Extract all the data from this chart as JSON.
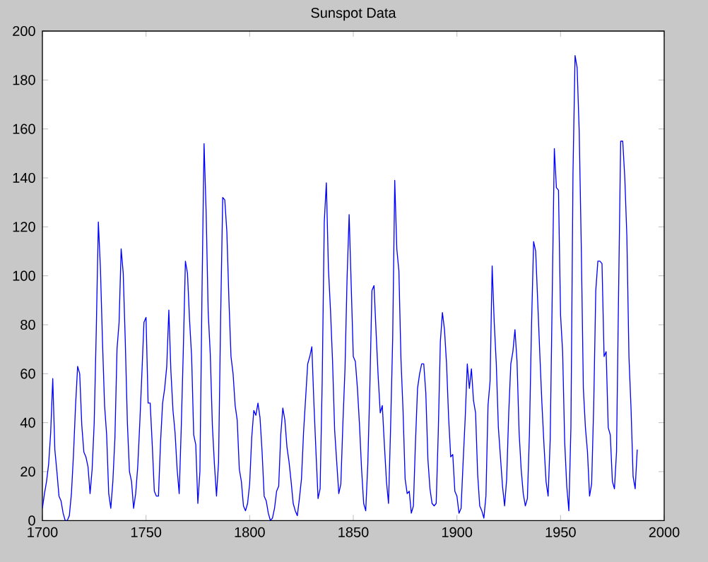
{
  "chart_data": {
    "type": "line",
    "title": "Sunspot Data",
    "xlim": [
      1700,
      2000
    ],
    "xticks": [
      1700,
      1750,
      1800,
      1850,
      1900,
      1950,
      2000
    ],
    "ylim": [
      0,
      200
    ],
    "yticks": [
      0,
      20,
      40,
      60,
      80,
      100,
      120,
      140,
      160,
      180,
      200
    ],
    "marker": "none",
    "line_style": "solid",
    "series": [
      {
        "color": "#0000ff",
        "x": [
          1700,
          1701,
          1702,
          1703,
          1704,
          1705,
          1706,
          1707,
          1708,
          1709,
          1710,
          1711,
          1712,
          1713,
          1714,
          1715,
          1716,
          1717,
          1718,
          1719,
          1720,
          1721,
          1722,
          1723,
          1724,
          1725,
          1726,
          1727,
          1728,
          1729,
          1730,
          1731,
          1732,
          1733,
          1734,
          1735,
          1736,
          1737,
          1738,
          1739,
          1740,
          1741,
          1742,
          1743,
          1744,
          1745,
          1746,
          1747,
          1748,
          1749,
          1750,
          1751,
          1752,
          1753,
          1754,
          1755,
          1756,
          1757,
          1758,
          1759,
          1760,
          1761,
          1762,
          1763,
          1764,
          1765,
          1766,
          1767,
          1768,
          1769,
          1770,
          1771,
          1772,
          1773,
          1774,
          1775,
          1776,
          1777,
          1778,
          1779,
          1780,
          1781,
          1782,
          1783,
          1784,
          1785,
          1786,
          1787,
          1788,
          1789,
          1790,
          1791,
          1792,
          1793,
          1794,
          1795,
          1796,
          1797,
          1798,
          1799,
          1800,
          1801,
          1802,
          1803,
          1804,
          1805,
          1806,
          1807,
          1808,
          1809,
          1810,
          1811,
          1812,
          1813,
          1814,
          1815,
          1816,
          1817,
          1818,
          1819,
          1820,
          1821,
          1822,
          1823,
          1824,
          1825,
          1826,
          1827,
          1828,
          1829,
          1830,
          1831,
          1832,
          1833,
          1834,
          1835,
          1836,
          1837,
          1838,
          1839,
          1840,
          1841,
          1842,
          1843,
          1844,
          1845,
          1846,
          1847,
          1848,
          1849,
          1850,
          1851,
          1852,
          1853,
          1854,
          1855,
          1856,
          1857,
          1858,
          1859,
          1860,
          1861,
          1862,
          1863,
          1864,
          1865,
          1866,
          1867,
          1868,
          1869,
          1870,
          1871,
          1872,
          1873,
          1874,
          1875,
          1876,
          1877,
          1878,
          1879,
          1880,
          1881,
          1882,
          1883,
          1884,
          1885,
          1886,
          1887,
          1888,
          1889,
          1890,
          1891,
          1892,
          1893,
          1894,
          1895,
          1896,
          1897,
          1898,
          1899,
          1900,
          1901,
          1902,
          1903,
          1904,
          1905,
          1906,
          1907,
          1908,
          1909,
          1910,
          1911,
          1912,
          1913,
          1914,
          1915,
          1916,
          1917,
          1918,
          1919,
          1920,
          1921,
          1922,
          1923,
          1924,
          1925,
          1926,
          1927,
          1928,
          1929,
          1930,
          1931,
          1932,
          1933,
          1934,
          1935,
          1936,
          1937,
          1938,
          1939,
          1940,
          1941,
          1942,
          1943,
          1944,
          1945,
          1946,
          1947,
          1948,
          1949,
          1950,
          1951,
          1952,
          1953,
          1954,
          1955,
          1956,
          1957,
          1958,
          1959,
          1960,
          1961,
          1962,
          1963,
          1964,
          1965,
          1966,
          1967,
          1968,
          1969,
          1970,
          1971,
          1972,
          1973,
          1974,
          1975,
          1976,
          1977,
          1978,
          1979,
          1980,
          1981,
          1982,
          1983,
          1984,
          1985,
          1986,
          1987
        ],
        "values": [
          5,
          11,
          16,
          23,
          36,
          58,
          29,
          20,
          10,
          8,
          3,
          0,
          0,
          2,
          11,
          27,
          47,
          63,
          60,
          39,
          28,
          26,
          22,
          11,
          21,
          40,
          78,
          122,
          103,
          73,
          47,
          35,
          11,
          5,
          16,
          34,
          70,
          81,
          111,
          101,
          73,
          40,
          20,
          16,
          5,
          11,
          22,
          40,
          60,
          81,
          83,
          48,
          48,
          31,
          12,
          10,
          10,
          32,
          48,
          54,
          63,
          86,
          61,
          45,
          36,
          21,
          11,
          38,
          70,
          106,
          101,
          82,
          67,
          35,
          31,
          7,
          20,
          93,
          154,
          126,
          85,
          68,
          39,
          23,
          10,
          24,
          83,
          132,
          131,
          118,
          90,
          67,
          60,
          47,
          41,
          21,
          16,
          6,
          4,
          7,
          15,
          34,
          45,
          43,
          48,
          42,
          28,
          10,
          8,
          3,
          0,
          1,
          5,
          12,
          14,
          35,
          46,
          41,
          30,
          24,
          16,
          7,
          4,
          2,
          9,
          17,
          36,
          50,
          64,
          67,
          71,
          48,
          28,
          9,
          13,
          57,
          122,
          138,
          103,
          86,
          65,
          37,
          24,
          11,
          15,
          40,
          62,
          99,
          125,
          96,
          67,
          65,
          54,
          39,
          21,
          7,
          4,
          23,
          55,
          94,
          96,
          77,
          59,
          44,
          47,
          31,
          16,
          7,
          38,
          74,
          139,
          111,
          102,
          66,
          45,
          17,
          11,
          12,
          3,
          6,
          32,
          54,
          60,
          64,
          64,
          52,
          25,
          13,
          7,
          6,
          7,
          36,
          73,
          85,
          78,
          64,
          42,
          26,
          27,
          12,
          10,
          3,
          5,
          24,
          42,
          64,
          54,
          62,
          49,
          44,
          19,
          6,
          4,
          1,
          10,
          47,
          57,
          104,
          81,
          64,
          38,
          26,
          14,
          6,
          17,
          44,
          64,
          69,
          78,
          65,
          36,
          21,
          11,
          6,
          9,
          36,
          80,
          114,
          110,
          89,
          68,
          48,
          31,
          16,
          10,
          33,
          93,
          152,
          136,
          135,
          84,
          69,
          32,
          14,
          4,
          38,
          142,
          190,
          185,
          159,
          112,
          54,
          38,
          28,
          10,
          15,
          47,
          94,
          106,
          106,
          105,
          67,
          69,
          38,
          35,
          16,
          13,
          28,
          93,
          155,
          155,
          140,
          116,
          67,
          46,
          18,
          13,
          29
        ]
      }
    ]
  }
}
